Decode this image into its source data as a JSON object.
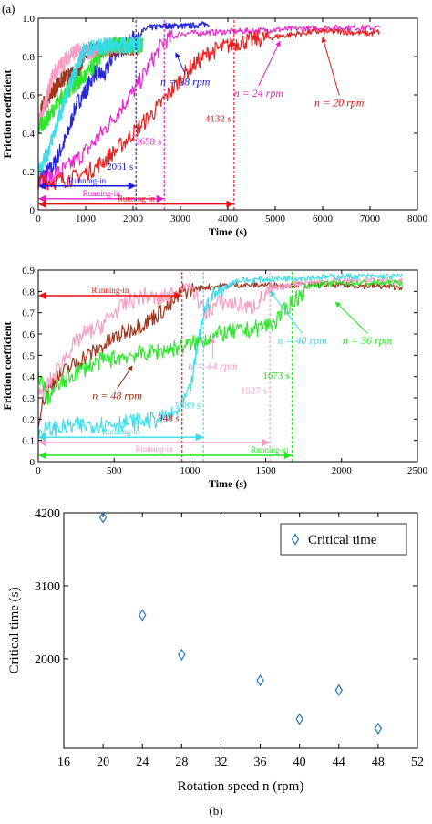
{
  "figure": {
    "panel_a_label": "(a)",
    "panel_b_label": "(b)"
  },
  "chart_data": [
    {
      "type": "line",
      "id": "top",
      "xlabel": "Time (s)",
      "ylabel": "Friction coefficient",
      "xlim": [
        0,
        8000
      ],
      "ylim": [
        0,
        1.0
      ],
      "xticks": [
        0,
        1000,
        2000,
        3000,
        4000,
        5000,
        6000,
        7000,
        8000
      ],
      "yticks": [
        0,
        0.2,
        0.4,
        0.6,
        0.8,
        1.0
      ],
      "ytick_labels": [
        "0",
        "0.2",
        "0.4",
        "0.6",
        "0.8",
        "1.0"
      ],
      "grid": false,
      "series": [
        {
          "name": "n = 28 rpm",
          "color": "#1a1adc",
          "points": [
            [
              0,
              0.16
            ],
            [
              300,
              0.22
            ],
            [
              600,
              0.38
            ],
            [
              800,
              0.55
            ],
            [
              1000,
              0.62
            ],
            [
              1200,
              0.72
            ],
            [
              1400,
              0.7
            ],
            [
              1600,
              0.82
            ],
            [
              1800,
              0.85
            ],
            [
              2061,
              0.9
            ],
            [
              2300,
              0.95
            ],
            [
              2700,
              0.96
            ],
            [
              3200,
              0.96
            ],
            [
              3600,
              0.97
            ]
          ]
        },
        {
          "name": "n = 24 rpm",
          "color": "#e61ec8",
          "points": [
            [
              0,
              0.15
            ],
            [
              300,
              0.18
            ],
            [
              600,
              0.22
            ],
            [
              900,
              0.28
            ],
            [
              1200,
              0.36
            ],
            [
              1500,
              0.45
            ],
            [
              1800,
              0.55
            ],
            [
              2100,
              0.65
            ],
            [
              2400,
              0.78
            ],
            [
              2658,
              0.88
            ],
            [
              3000,
              0.92
            ],
            [
              4000,
              0.93
            ],
            [
              5000,
              0.94
            ],
            [
              6000,
              0.95
            ],
            [
              7000,
              0.95
            ],
            [
              7200,
              0.95
            ]
          ]
        },
        {
          "name": "n = 20 rpm",
          "color": "#e61414",
          "points": [
            [
              0,
              0.15
            ],
            [
              400,
              0.15
            ],
            [
              800,
              0.17
            ],
            [
              1200,
              0.22
            ],
            [
              1600,
              0.3
            ],
            [
              2000,
              0.4
            ],
            [
              2400,
              0.5
            ],
            [
              2800,
              0.62
            ],
            [
              3200,
              0.74
            ],
            [
              3600,
              0.82
            ],
            [
              4132,
              0.87
            ],
            [
              4600,
              0.89
            ],
            [
              5200,
              0.91
            ],
            [
              5800,
              0.93
            ],
            [
              6400,
              0.93
            ],
            [
              7000,
              0.92
            ],
            [
              7200,
              0.93
            ]
          ]
        },
        {
          "name": "",
          "color": "#9b2a0f",
          "points": [
            [
              0,
              0.45
            ],
            [
              100,
              0.55
            ],
            [
              300,
              0.62
            ],
            [
              500,
              0.68
            ],
            [
              700,
              0.7
            ],
            [
              850,
              0.72
            ],
            [
              1000,
              0.83
            ],
            [
              1300,
              0.84
            ],
            [
              1600,
              0.84
            ],
            [
              1900,
              0.84
            ],
            [
              2200,
              0.85
            ]
          ]
        },
        {
          "name": "",
          "color": "#f59ac0",
          "points": [
            [
              0,
              0.45
            ],
            [
              150,
              0.55
            ],
            [
              300,
              0.7
            ],
            [
              500,
              0.76
            ],
            [
              700,
              0.82
            ],
            [
              900,
              0.83
            ],
            [
              1100,
              0.82
            ],
            [
              1300,
              0.83
            ],
            [
              1500,
              0.86
            ],
            [
              1800,
              0.86
            ],
            [
              2200,
              0.86
            ]
          ]
        },
        {
          "name": "",
          "color": "#22e622",
          "points": [
            [
              0,
              0.42
            ],
            [
              200,
              0.48
            ],
            [
              400,
              0.56
            ],
            [
              600,
              0.62
            ],
            [
              800,
              0.66
            ],
            [
              1000,
              0.7
            ],
            [
              1200,
              0.76
            ],
            [
              1400,
              0.84
            ],
            [
              1600,
              0.86
            ],
            [
              1900,
              0.86
            ],
            [
              2200,
              0.86
            ]
          ]
        },
        {
          "name": "",
          "color": "#33dcea",
          "points": [
            [
              0,
              0.2
            ],
            [
              200,
              0.3
            ],
            [
              400,
              0.45
            ],
            [
              600,
              0.6
            ],
            [
              800,
              0.74
            ],
            [
              1000,
              0.84
            ],
            [
              1300,
              0.85
            ],
            [
              1600,
              0.86
            ],
            [
              2000,
              0.86
            ],
            [
              2200,
              0.87
            ]
          ]
        }
      ],
      "markers": [
        {
          "x": 2061,
          "label": "2061 s",
          "color": "#1a1adc",
          "label_y": 0.21
        },
        {
          "x": 2658,
          "label": "2658 s",
          "color": "#e61ec8",
          "label_y": 0.34
        },
        {
          "x": 4132,
          "label": "4132 s",
          "color": "#e61414",
          "label_y": 0.46
        }
      ],
      "running_in": [
        {
          "to": 2061,
          "y": 0.125,
          "label": "Running-in",
          "color": "#1a1adc"
        },
        {
          "to": 2658,
          "y": 0.058,
          "label": "Running-in",
          "color": "#e61ec8"
        },
        {
          "to": 4132,
          "y": 0.03,
          "label": "Running-in",
          "color": "#e61414"
        }
      ],
      "annotations": [
        {
          "text": "n = 28 rpm",
          "color": "#1a1adc",
          "x": 3100,
          "y": 0.67,
          "arrow_to": [
            2900,
            0.82
          ]
        },
        {
          "text": "n = 24 rpm",
          "color": "#e61ec8",
          "x": 4650,
          "y": 0.61,
          "arrow_to": [
            5100,
            0.88
          ]
        },
        {
          "text": "n = 20 rpm",
          "color": "#e61414",
          "x": 6350,
          "y": 0.56,
          "arrow_to": [
            6000,
            0.9
          ]
        }
      ]
    },
    {
      "type": "line",
      "id": "middle",
      "xlabel": "Time (s)",
      "ylabel": "Friction coefficient",
      "xlim": [
        0,
        2500
      ],
      "ylim": [
        0,
        0.9
      ],
      "xticks": [
        0,
        500,
        1000,
        1500,
        2000,
        2500
      ],
      "yticks": [
        0,
        0.1,
        0.2,
        0.3,
        0.4,
        0.5,
        0.6,
        0.7,
        0.8,
        0.9
      ],
      "ytick_labels": [
        "0",
        "0.1",
        "0.2",
        "0.3",
        "0.4",
        "0.5",
        "0.6",
        "0.7",
        "0.8",
        "0.9"
      ],
      "grid": false,
      "series": [
        {
          "name": "n = 48 rpm",
          "color": "#9b2a0f",
          "points": [
            [
              0,
              0.2
            ],
            [
              40,
              0.3
            ],
            [
              100,
              0.38
            ],
            [
              200,
              0.44
            ],
            [
              300,
              0.49
            ],
            [
              400,
              0.53
            ],
            [
              500,
              0.58
            ],
            [
              600,
              0.62
            ],
            [
              700,
              0.65
            ],
            [
              800,
              0.7
            ],
            [
              880,
              0.74
            ],
            [
              948,
              0.8
            ],
            [
              1100,
              0.82
            ],
            [
              1300,
              0.83
            ],
            [
              1600,
              0.83
            ],
            [
              2000,
              0.83
            ],
            [
              2400,
              0.82
            ]
          ]
        },
        {
          "name": "n = 44 rpm",
          "color": "#f59ac0",
          "points": [
            [
              0,
              0.3
            ],
            [
              100,
              0.4
            ],
            [
              200,
              0.52
            ],
            [
              300,
              0.6
            ],
            [
              400,
              0.63
            ],
            [
              500,
              0.7
            ],
            [
              600,
              0.75
            ],
            [
              700,
              0.78
            ],
            [
              800,
              0.76
            ],
            [
              900,
              0.8
            ],
            [
              1000,
              0.83
            ],
            [
              1100,
              0.7
            ],
            [
              1200,
              0.75
            ],
            [
              1300,
              0.74
            ],
            [
              1400,
              0.72
            ],
            [
              1527,
              0.8
            ],
            [
              1700,
              0.84
            ],
            [
              2000,
              0.85
            ],
            [
              2400,
              0.85
            ]
          ]
        },
        {
          "name": "n = 40 rpm",
          "color": "#33dcea",
          "points": [
            [
              0,
              0.14
            ],
            [
              60,
              0.15
            ],
            [
              150,
              0.16
            ],
            [
              300,
              0.17
            ],
            [
              500,
              0.18
            ],
            [
              700,
              0.19
            ],
            [
              800,
              0.2
            ],
            [
              900,
              0.22
            ],
            [
              1000,
              0.33
            ],
            [
              1089,
              0.7
            ],
            [
              1150,
              0.78
            ],
            [
              1300,
              0.85
            ],
            [
              1600,
              0.86
            ],
            [
              2000,
              0.87
            ],
            [
              2400,
              0.87
            ]
          ]
        },
        {
          "name": "n = 36 rpm",
          "color": "#22e622",
          "points": [
            [
              0,
              0.42
            ],
            [
              60,
              0.3
            ],
            [
              120,
              0.35
            ],
            [
              250,
              0.42
            ],
            [
              400,
              0.47
            ],
            [
              600,
              0.5
            ],
            [
              800,
              0.52
            ],
            [
              1000,
              0.55
            ],
            [
              1200,
              0.6
            ],
            [
              1400,
              0.62
            ],
            [
              1550,
              0.65
            ],
            [
              1673,
              0.75
            ],
            [
              1800,
              0.83
            ],
            [
              2000,
              0.84
            ],
            [
              2400,
              0.84
            ]
          ]
        }
      ],
      "markers": [
        {
          "x": 948,
          "label": "948 s",
          "color": "#e61414",
          "label_y": 0.19
        },
        {
          "x": 1089,
          "label": "1089 s",
          "color": "#33dcea",
          "label_y": 0.25
        },
        {
          "x": 1527,
          "label": "1527 s",
          "color": "#f59ac0",
          "label_y": 0.32
        },
        {
          "x": 1673,
          "label": "1673 s",
          "color": "#22e622",
          "label_y": 0.39
        }
      ],
      "running_in": [
        {
          "to": 948,
          "y": 0.78,
          "label": "Running-in",
          "color": "#e61414",
          "label_at": "above"
        },
        {
          "to": 1089,
          "y": 0.115,
          "label": "Running-in",
          "color": "#33dcea",
          "label_at": "above"
        },
        {
          "to": 1527,
          "y": 0.09,
          "label": "Running-in",
          "color": "#f59ac0",
          "label_at": "below"
        },
        {
          "to": 1673,
          "y": 0.03,
          "label": "Running-in",
          "color": "#22e622",
          "label_at": "above-end"
        }
      ],
      "annotations": [
        {
          "text": "n = 48 rpm",
          "color": "#9b2a0f",
          "x": 520,
          "y": 0.31,
          "arrow_to": [
            620,
            0.45
          ]
        },
        {
          "text": "n = 44 rpm",
          "color": "#f59ac0",
          "x": 1150,
          "y": 0.45,
          "arrow_to": [
            1150,
            0.58
          ]
        },
        {
          "text": "n = 40 rpm",
          "color": "#33dcea",
          "x": 1740,
          "y": 0.57,
          "arrow_to": [
            1530,
            0.8
          ]
        },
        {
          "text": "n = 36 rpm",
          "color": "#22e622",
          "x": 2170,
          "y": 0.57,
          "arrow_to": [
            1960,
            0.75
          ]
        }
      ]
    },
    {
      "type": "scatter",
      "id": "bottom",
      "xlabel": "Rotation speed n (rpm)",
      "ylabel": "Critical time (s)",
      "xlim": [
        16,
        52
      ],
      "ylim": [
        650,
        4200
      ],
      "xticks": [
        16,
        20,
        24,
        28,
        32,
        36,
        40,
        44,
        48,
        52
      ],
      "yticks": [
        2000,
        3100,
        4200
      ],
      "grid": false,
      "legend": {
        "label": "Critical time",
        "position": "top-right"
      },
      "marker": "diamond",
      "color": "#2f7fc1",
      "points": [
        [
          20,
          4132
        ],
        [
          24,
          2658
        ],
        [
          28,
          2061
        ],
        [
          36,
          1673
        ],
        [
          40,
          1089
        ],
        [
          44,
          1527
        ],
        [
          48,
          948
        ]
      ]
    }
  ]
}
